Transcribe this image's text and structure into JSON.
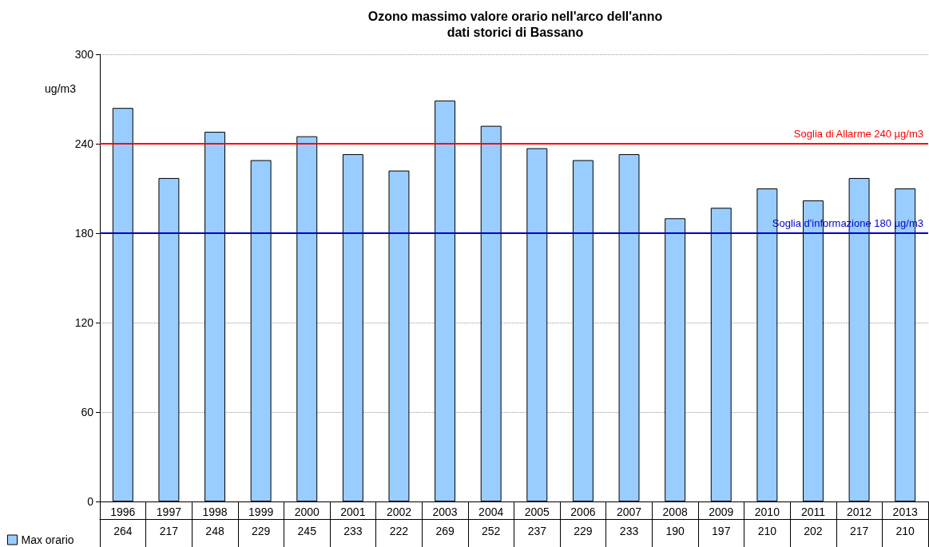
{
  "chart_data": {
    "type": "bar",
    "title": "Ozono massimo valore orario nell'arco dell'anno\ndati storici di Bassano",
    "ylabel": "ug/m3",
    "categories": [
      "1996",
      "1997",
      "1998",
      "1999",
      "2000",
      "2001",
      "2002",
      "2003",
      "2004",
      "2005",
      "2006",
      "2007",
      "2008",
      "2009",
      "2010",
      "2011",
      "2012",
      "2013"
    ],
    "series": [
      {
        "name": "Max orario",
        "color": "#99ccff",
        "values": [
          264,
          217,
          248,
          229,
          245,
          233,
          222,
          269,
          252,
          237,
          229,
          233,
          190,
          197,
          210,
          202,
          217,
          210
        ]
      }
    ],
    "ylim": [
      0,
      300
    ],
    "yticks": [
      0,
      60,
      120,
      180,
      240,
      300
    ],
    "grid": "y",
    "legend": "bottom left",
    "data_labels": true,
    "ref_lines": [
      {
        "axis": "y",
        "value": 240,
        "label": "Soglia di Allarme 240 µg/m3",
        "color": "#ff0000"
      },
      {
        "axis": "y",
        "value": 180,
        "label": "Soglia d'informazione 180 µg/m3",
        "color": "#0000cc"
      }
    ]
  }
}
